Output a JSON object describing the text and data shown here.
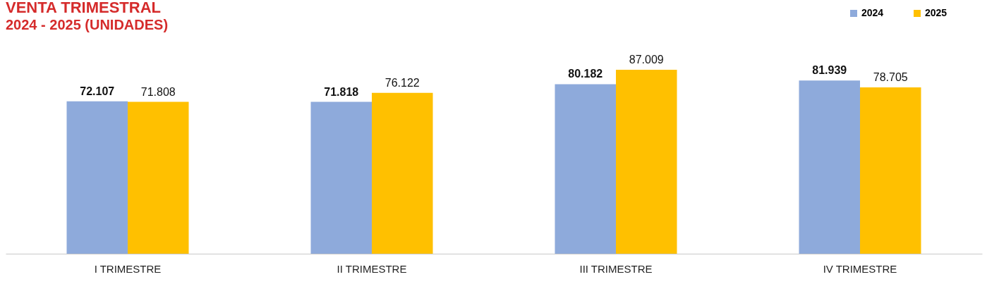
{
  "chart_data": {
    "type": "bar",
    "title": "VENTA TRIMESTRAL",
    "subtitle": "2024 - 2025 (UNIDADES)",
    "categories": [
      "I TRIMESTRE",
      "II TRIMESTRE",
      "III TRIMESTRE",
      "IV TRIMESTRE"
    ],
    "series": [
      {
        "name": "2024",
        "color": "#8eaadb",
        "values": [
          72107,
          71818,
          80182,
          81939
        ],
        "value_labels": [
          "72.107",
          "71.818",
          "80.182",
          "81.939"
        ]
      },
      {
        "name": "2025",
        "color": "#ffc000",
        "values": [
          71808,
          76122,
          87009,
          78705
        ],
        "value_labels": [
          "71.808",
          "76.122",
          "87.009",
          "78.705"
        ]
      }
    ],
    "legend": "top right",
    "grid": false
  }
}
